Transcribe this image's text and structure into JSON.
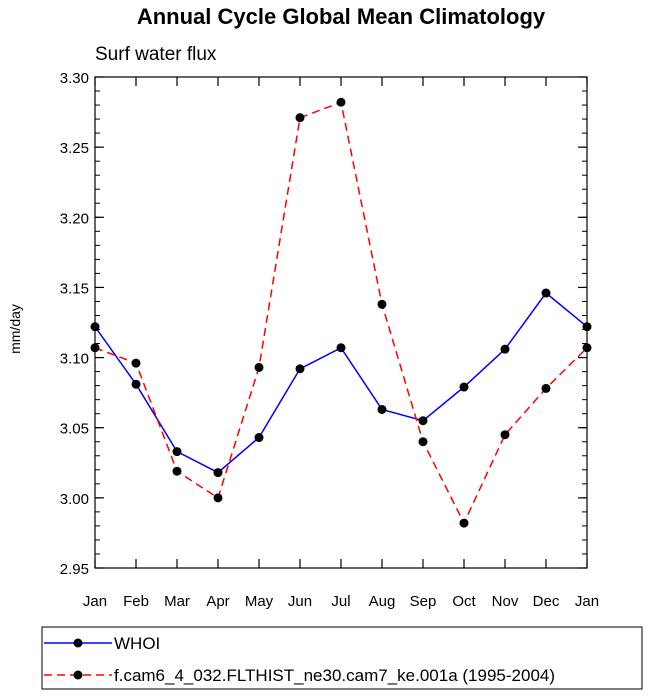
{
  "chart_data": {
    "type": "line",
    "title": "Annual Cycle Global Mean Climatology",
    "subtitle": "Surf water flux",
    "xlabel": "",
    "ylabel": "mm/day",
    "categories": [
      "Jan",
      "Feb",
      "Mar",
      "Apr",
      "May",
      "Jun",
      "Jul",
      "Aug",
      "Sep",
      "Oct",
      "Nov",
      "Dec",
      "Jan"
    ],
    "ylim": [
      2.95,
      3.3
    ],
    "yticks": [
      "2.95",
      "3.00",
      "3.05",
      "3.10",
      "3.15",
      "3.20",
      "3.25",
      "3.30"
    ],
    "grid": false,
    "legend_position": "bottom",
    "series": [
      {
        "name": "WHOI",
        "color": "#0000ff",
        "style": "solid",
        "marker": "filled-circle",
        "values": [
          3.122,
          3.081,
          3.033,
          3.018,
          3.043,
          3.092,
          3.107,
          3.063,
          3.055,
          3.079,
          3.106,
          3.146,
          3.122
        ]
      },
      {
        "name": "f.cam6_4_032.FLTHIST_ne30.cam7_ke.001a (1995-2004)",
        "color": "#ff0000",
        "style": "dashed",
        "marker": "filled-circle",
        "values": [
          3.107,
          3.096,
          3.019,
          3.0,
          3.093,
          3.271,
          3.282,
          3.138,
          3.04,
          2.982,
          3.045,
          3.078,
          3.107
        ]
      }
    ]
  }
}
